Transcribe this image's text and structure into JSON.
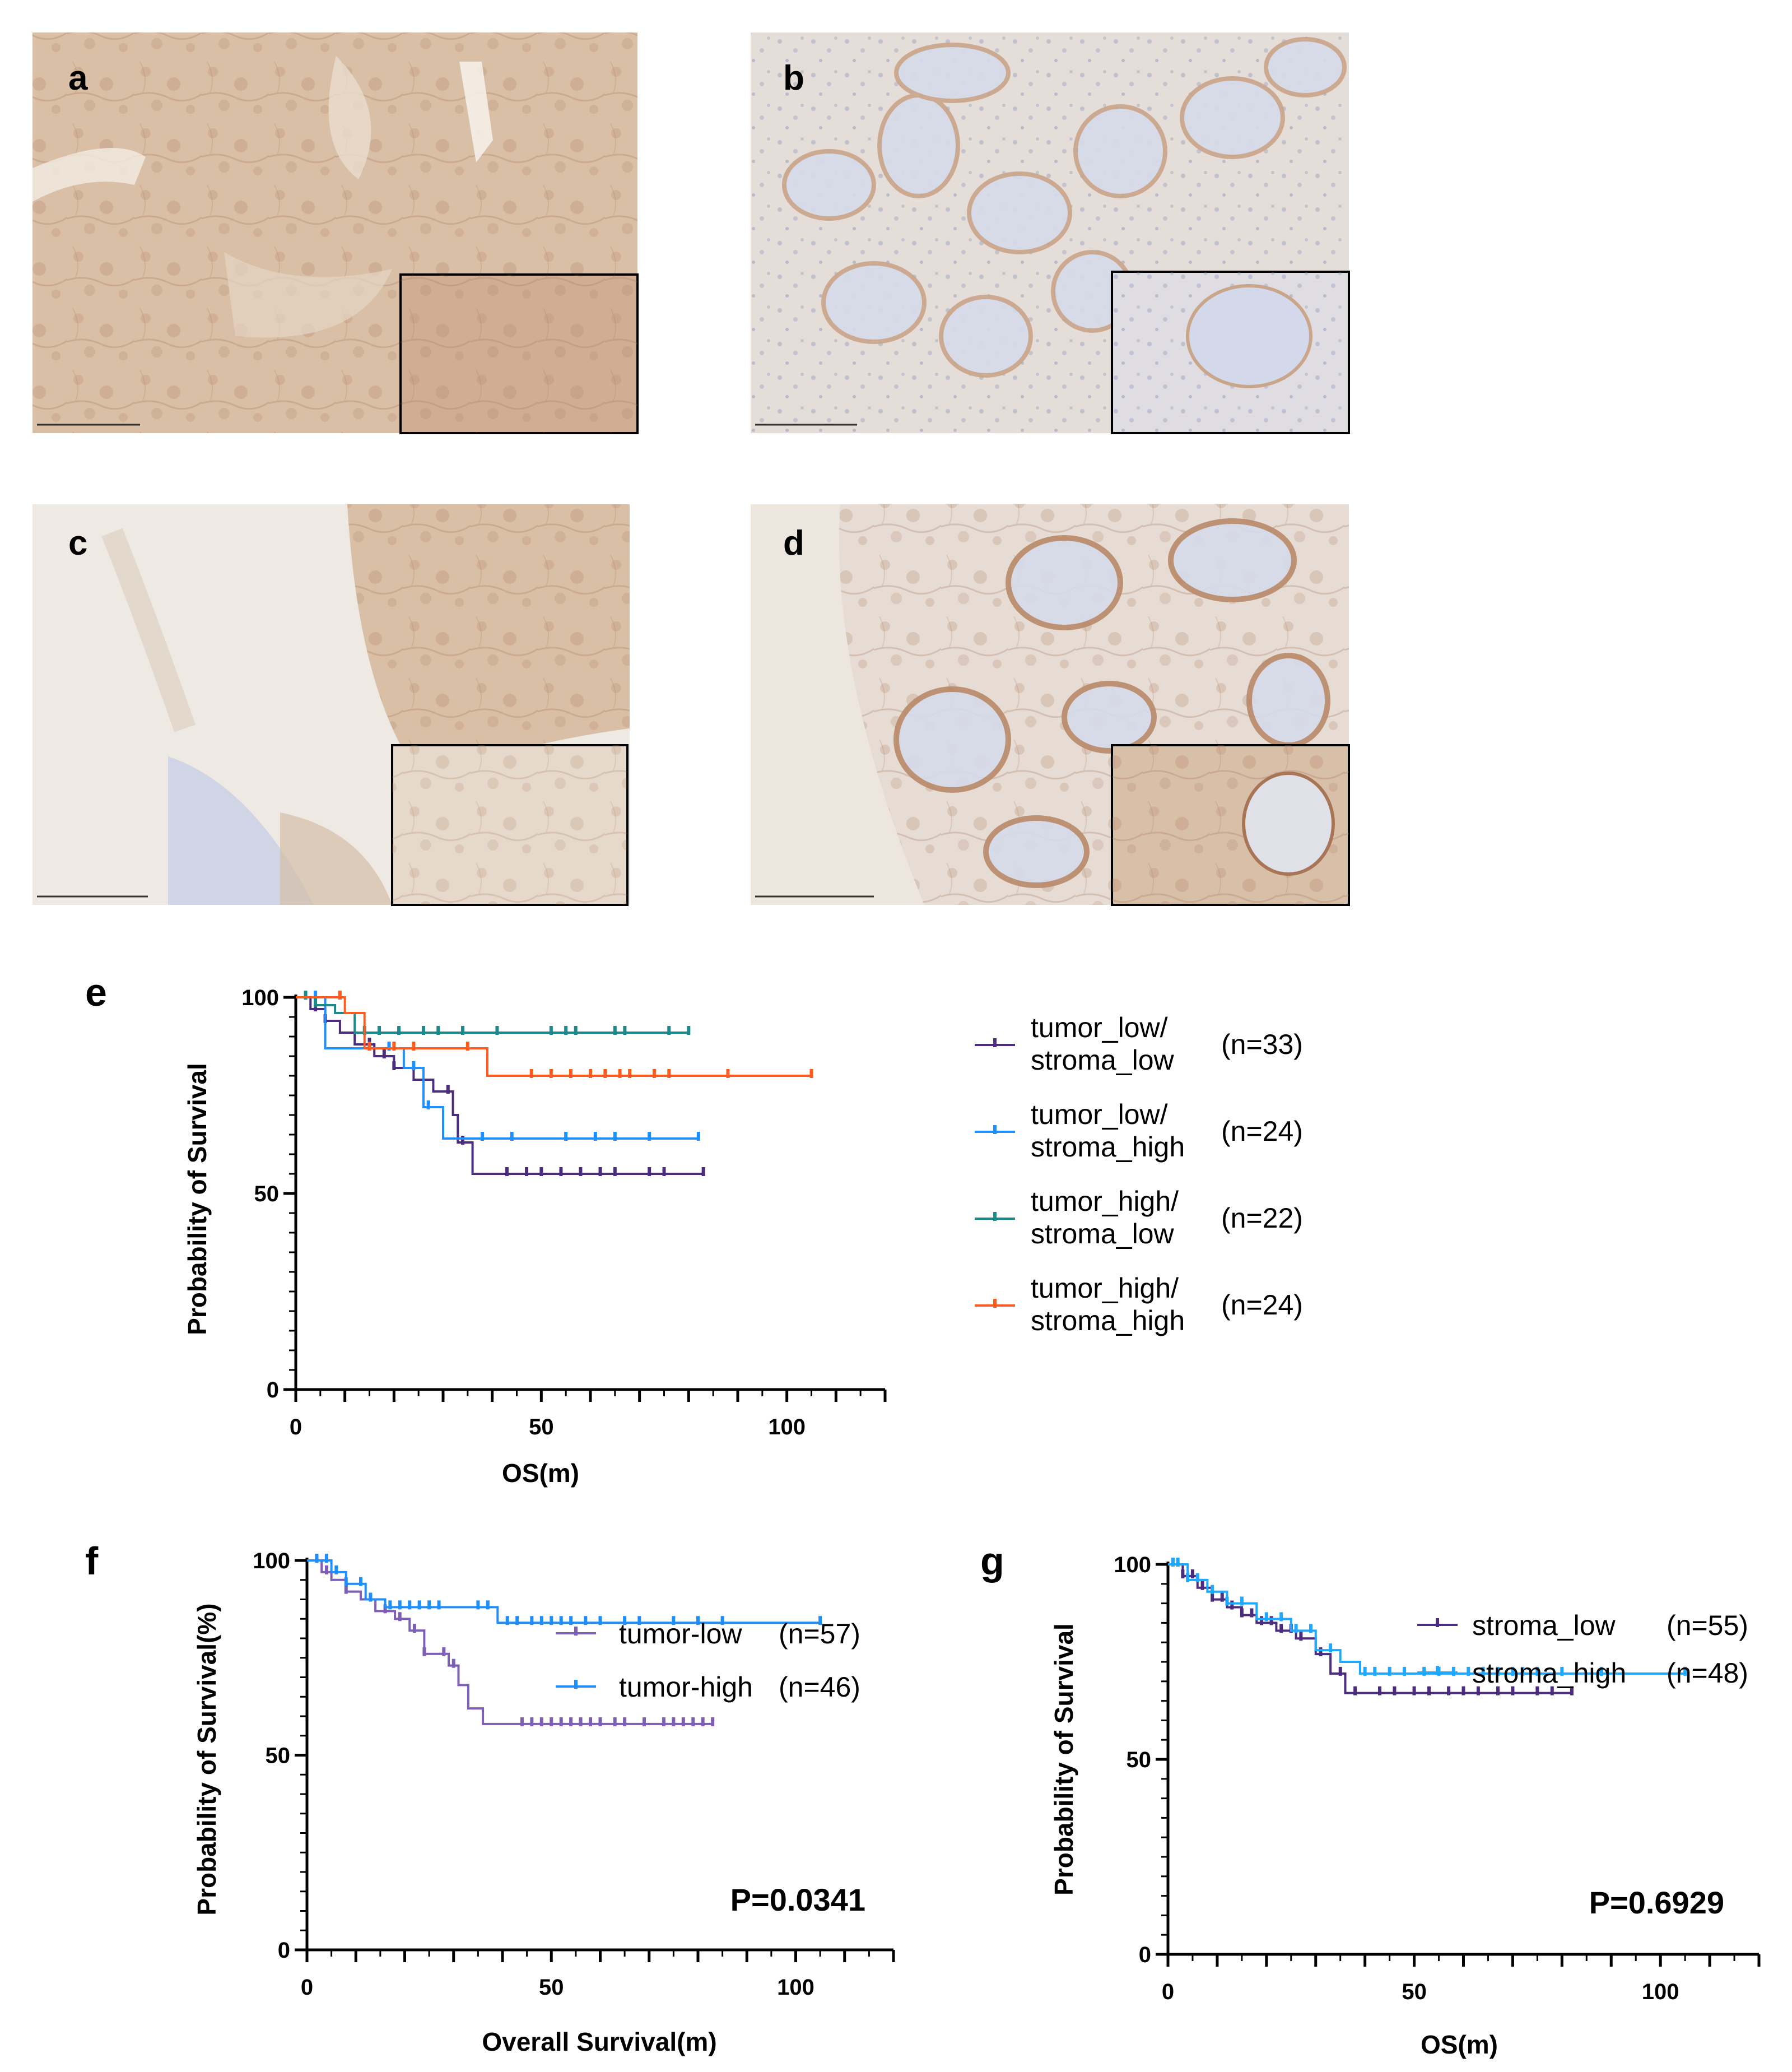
{
  "panels": {
    "a": {
      "label": "a"
    },
    "b": {
      "label": "b"
    },
    "c": {
      "label": "c"
    },
    "d": {
      "label": "d"
    },
    "e": {
      "label": "e"
    },
    "f": {
      "label": "f"
    },
    "g": {
      "label": "g"
    }
  },
  "colors": {
    "ihc_strong": "#c9a58a",
    "ihc_weak": "#e8ddd2",
    "hematoxylin": "#b9c4dd",
    "tumor_low_stroma_low": "#4b2c7f",
    "tumor_low_stroma_high": "#1e90ff",
    "tumor_high_stroma_low": "#1b8a8a",
    "tumor_high_stroma_high": "#ff5a1f",
    "tumor_low": "#7e5fb6",
    "tumor_high": "#1f8fff",
    "stroma_low": "#4b2c7f",
    "stroma_high": "#1fa8ff"
  },
  "chart_data": [
    {
      "panel": "e",
      "type": "line",
      "xlabel": "OS(m)",
      "ylabel": "Probability of Survival",
      "xlim": [
        0,
        120
      ],
      "ylim": [
        0,
        100
      ],
      "xticks": [
        "0",
        "50",
        "100"
      ],
      "yticks": [
        "0",
        "50",
        "100"
      ],
      "legend_position": "right",
      "series": [
        {
          "name_line1": "tumor_low/",
          "name_line2": "stroma_low",
          "n": "(n=33)",
          "color": "#4b2c7f",
          "x": [
            0,
            3,
            6,
            9,
            12,
            16,
            20,
            24,
            28,
            32,
            33,
            36,
            83
          ],
          "y": [
            100,
            97,
            94,
            91,
            88,
            85,
            82,
            79,
            76,
            70,
            63,
            55,
            55
          ],
          "censors": [
            2,
            4,
            6,
            15,
            18,
            20,
            31,
            34,
            43,
            47,
            50,
            54,
            58,
            62,
            65,
            72,
            75,
            83
          ]
        },
        {
          "name_line1": "tumor_low/",
          "name_line2": "stroma_high",
          "n": "(n=24)",
          "color": "#1e90ff",
          "x": [
            0,
            6,
            12,
            22,
            26,
            30,
            82
          ],
          "y": [
            100,
            87,
            87,
            82,
            72,
            64,
            64
          ],
          "censors": [
            2,
            4,
            15,
            19,
            24,
            27,
            38,
            44,
            55,
            61,
            65,
            72,
            82
          ]
        },
        {
          "name_line1": "tumor_high/",
          "name_line2": "stroma_low",
          "n": "(n=22)",
          "color": "#1b8a8a",
          "x": [
            0,
            4,
            8,
            12,
            80
          ],
          "y": [
            100,
            98,
            96,
            91,
            91
          ],
          "censors": [
            2,
            4,
            14,
            17,
            21,
            26,
            29,
            34,
            41,
            52,
            55,
            57,
            65,
            67,
            76,
            80
          ]
        },
        {
          "name_line1": "tumor_high/",
          "name_line2": "stroma_high",
          "n": "(n=24)",
          "color": "#ff5a1f",
          "x": [
            0,
            10,
            14,
            36,
            39,
            105
          ],
          "y": [
            100,
            96,
            87,
            87,
            80,
            80
          ],
          "censors": [
            9,
            15,
            20,
            24,
            35,
            48,
            52,
            56,
            60,
            63,
            66,
            68,
            73,
            76,
            88,
            105
          ]
        }
      ]
    },
    {
      "panel": "f",
      "type": "line",
      "xlabel": "Overall Survival(m)",
      "ylabel": "Probability of Survival(%)",
      "xlim": [
        0,
        120
      ],
      "ylim": [
        0,
        100
      ],
      "xticks": [
        "0",
        "50",
        "100"
      ],
      "yticks": [
        "0",
        "50",
        "100"
      ],
      "annotation": "P=0.0341",
      "legend_position": "lower-right",
      "series": [
        {
          "name": "tumor-low",
          "n": "(n=57)",
          "color": "#7e5fb6",
          "x": [
            0,
            3,
            5,
            8,
            11,
            14,
            18,
            21,
            24,
            29,
            31,
            33,
            36,
            83
          ],
          "y": [
            100,
            97,
            95,
            92,
            90,
            87,
            85,
            82,
            76,
            73,
            68,
            62,
            58,
            58
          ],
          "censors": [
            2,
            4,
            8,
            13,
            16,
            19,
            22,
            24,
            28,
            30,
            44,
            46,
            48,
            50,
            52,
            54,
            56,
            58,
            60,
            63,
            65,
            69,
            73,
            75,
            77,
            79,
            81,
            83
          ]
        },
        {
          "name": "tumor-high",
          "n": "(n=46)",
          "color": "#1f8fff",
          "x": [
            0,
            5,
            8,
            12,
            16,
            39,
            105
          ],
          "y": [
            100,
            97,
            94,
            90,
            88,
            84,
            84
          ],
          "censors": [
            2,
            4,
            6,
            8,
            11,
            13,
            17,
            19,
            21,
            23,
            25,
            27,
            35,
            37,
            41,
            43,
            46,
            48,
            50,
            52,
            54,
            57,
            60,
            65,
            68,
            75,
            80,
            85,
            105
          ]
        }
      ]
    },
    {
      "panel": "g",
      "type": "line",
      "xlabel": "OS(m)",
      "ylabel": "Probability of Survival",
      "xlim": [
        0,
        120
      ],
      "ylim": [
        0,
        100
      ],
      "xticks": [
        "0",
        "50",
        "100"
      ],
      "yticks": [
        "0",
        "50",
        "100"
      ],
      "annotation": "P=0.6929",
      "legend_position": "right",
      "series": [
        {
          "name": "stroma_low",
          "n": "(n=55)",
          "color": "#4b2c7f",
          "x": [
            0,
            3,
            6,
            9,
            12,
            15,
            18,
            22,
            26,
            30,
            33,
            36,
            82
          ],
          "y": [
            100,
            97,
            94,
            91,
            89,
            87,
            85,
            83,
            81,
            77,
            72,
            67,
            67
          ],
          "censors": [
            1,
            2,
            3,
            5,
            7,
            9,
            11,
            13,
            15,
            17,
            19,
            21,
            23,
            25,
            27,
            31,
            35,
            38,
            43,
            46,
            50,
            53,
            57,
            60,
            63,
            67,
            70,
            75,
            78,
            82
          ]
        },
        {
          "name": "stroma_high",
          "n": "(n=48)",
          "color": "#1fa8ff",
          "x": [
            0,
            4,
            8,
            12,
            18,
            25,
            30,
            35,
            39,
            105
          ],
          "y": [
            100,
            96,
            93,
            90,
            86,
            83,
            78,
            75,
            72,
            72
          ],
          "censors": [
            1,
            2,
            4,
            6,
            9,
            12,
            15,
            20,
            23,
            26,
            29,
            33,
            40,
            42,
            45,
            48,
            52,
            55,
            58,
            61,
            64,
            67,
            70,
            72,
            75,
            80,
            88,
            105
          ]
        }
      ]
    }
  ]
}
